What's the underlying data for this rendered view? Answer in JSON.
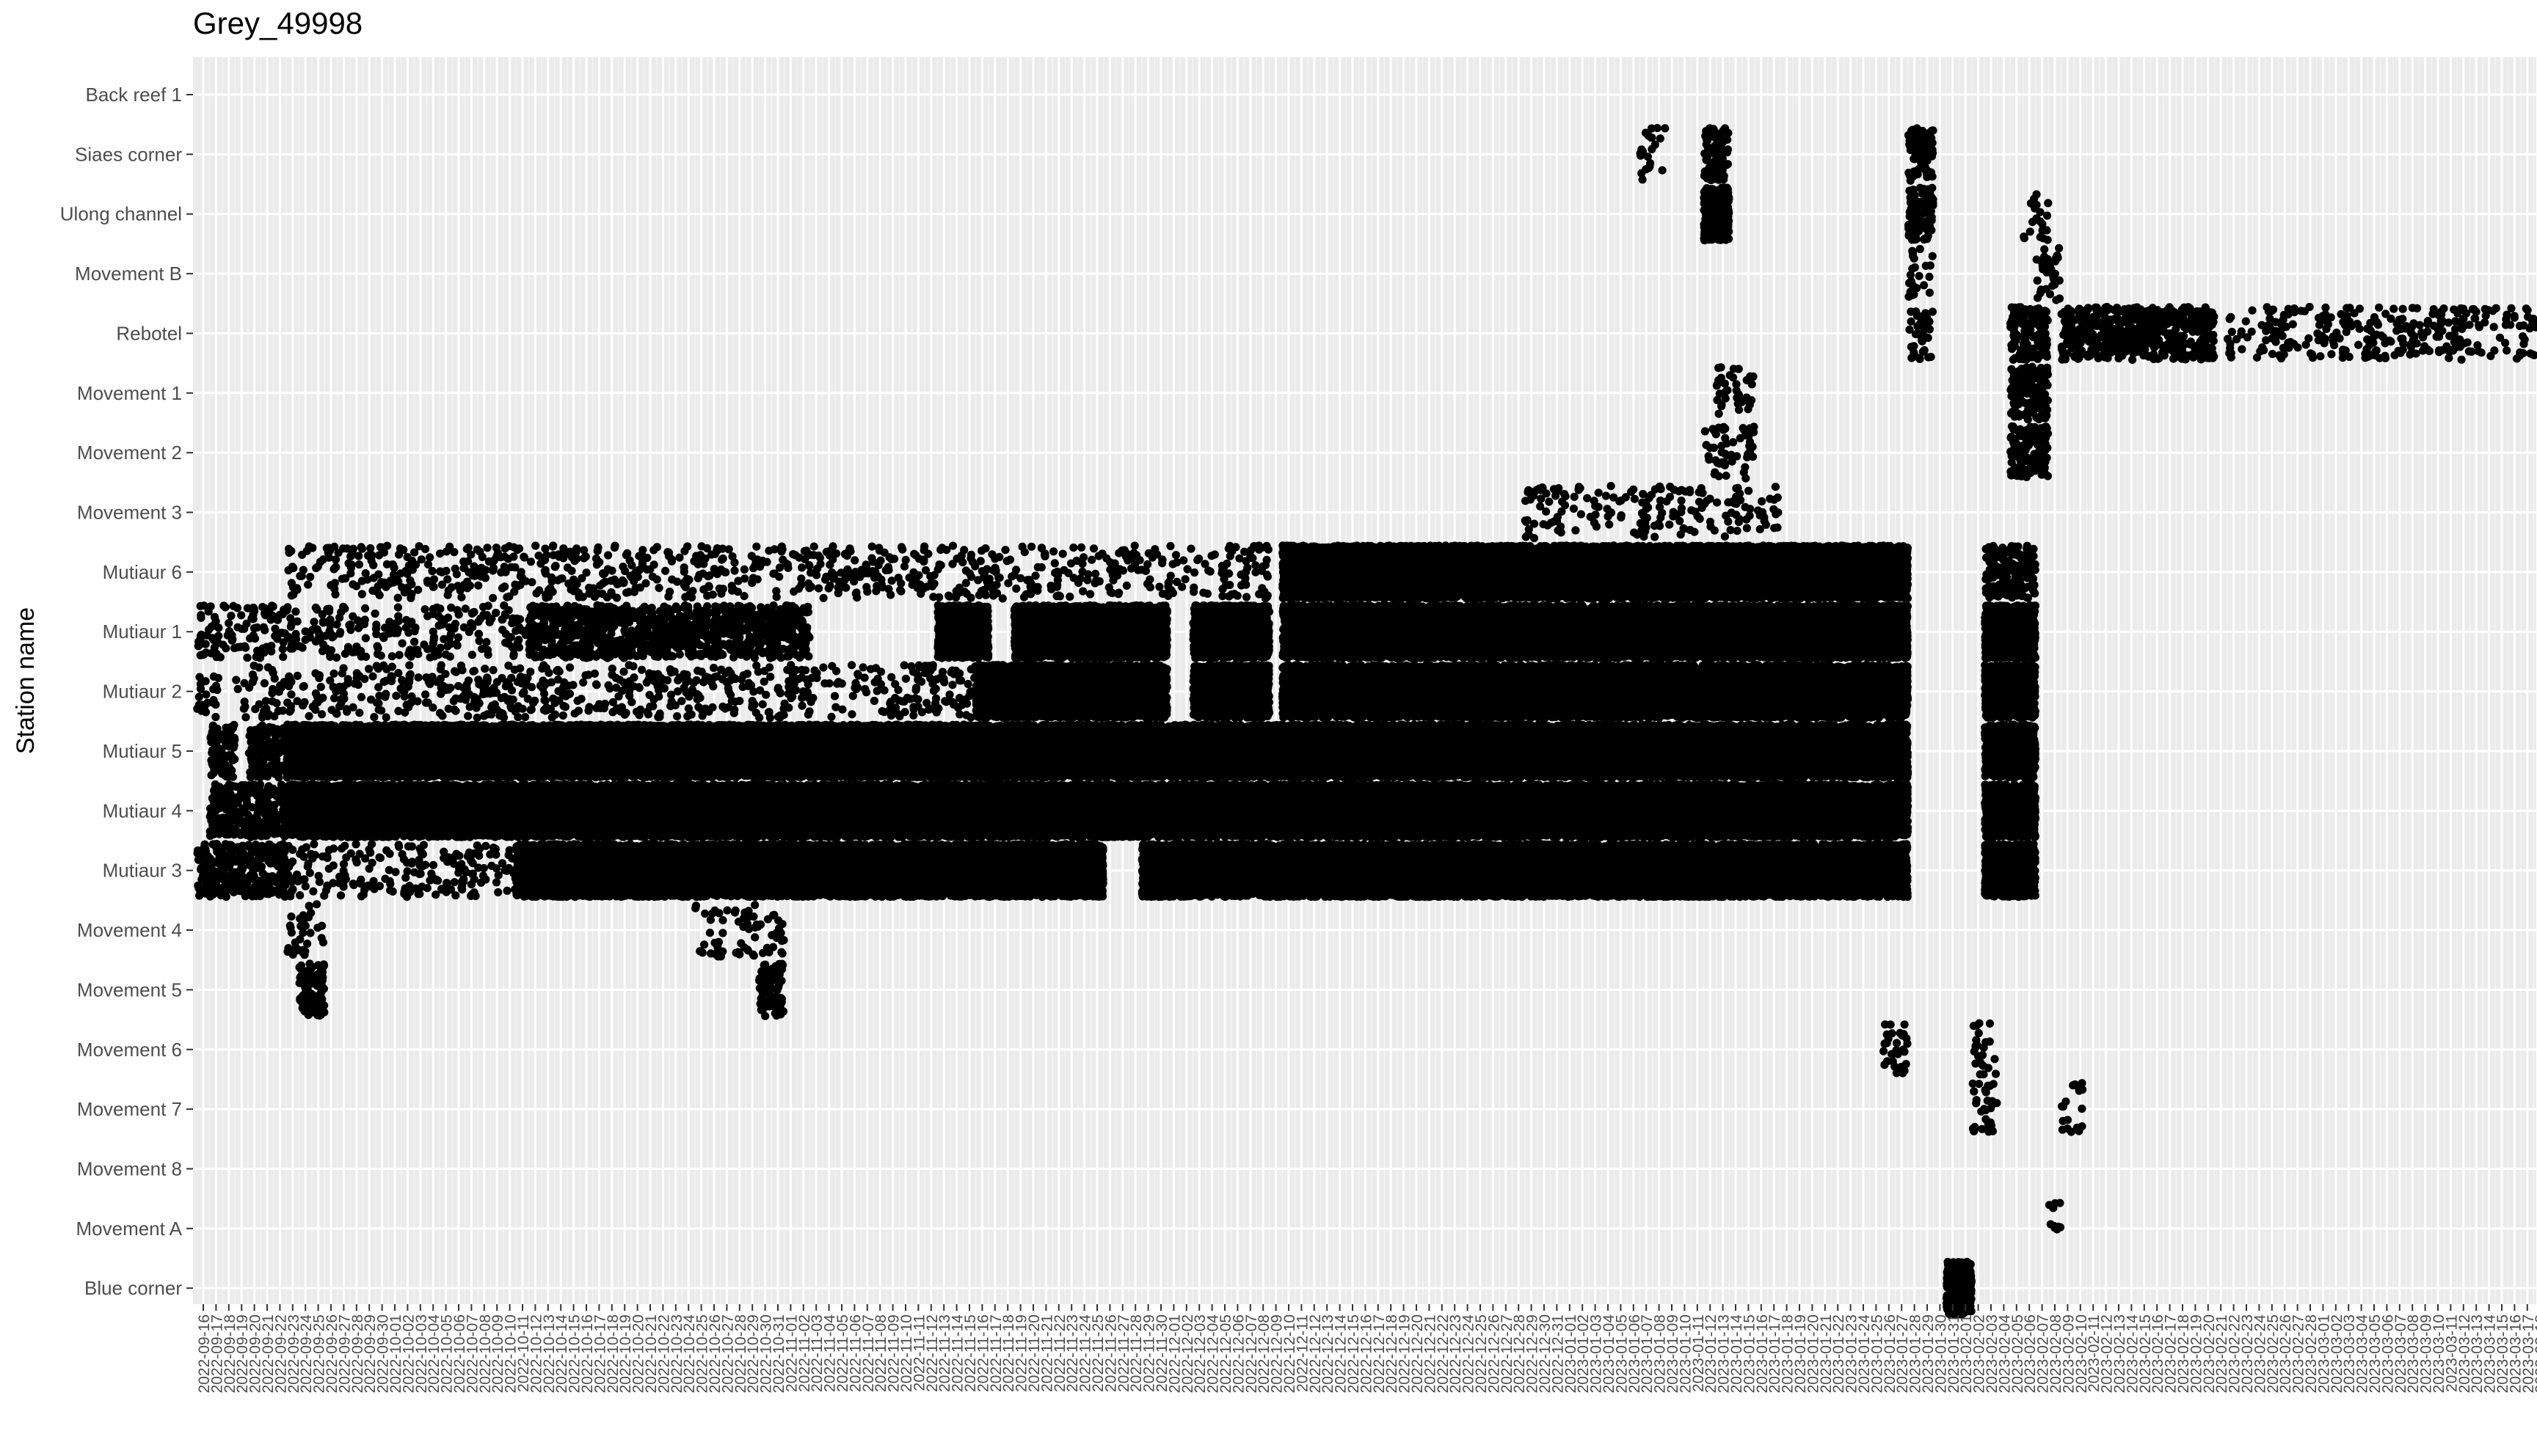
{
  "chart_data": {
    "type": "scatter",
    "title": "Grey_49998",
    "xlabel": "",
    "ylabel": "Station name",
    "x_start": "2022-09-16",
    "x_end": "2023-03-20",
    "x_tick_step_days": 1,
    "stations": [
      "Back reef 1",
      "Siaes corner",
      "Ulong channel",
      "Movement B",
      "Rebotel",
      "Movement 1",
      "Movement 2",
      "Movement 3",
      "Mutiaur 6",
      "Mutiaur 1",
      "Mutiaur 2",
      "Mutiaur 5",
      "Mutiaur 4",
      "Mutiaur 3",
      "Movement 4",
      "Movement 5",
      "Movement 6",
      "Movement 7",
      "Movement 8",
      "Movement A",
      "Blue corner"
    ],
    "grid": true,
    "legend": "none",
    "colors": {
      "panel": "#ebebeb",
      "grid": "#ffffff",
      "points": "#000000",
      "text": "#4d4d4d"
    },
    "detection_ranges": [
      {
        "station": "Mutiaur 3",
        "from": "2022-09-16",
        "to": "2022-09-22",
        "density": "medium"
      },
      {
        "station": "Mutiaur 3",
        "from": "2022-09-23",
        "to": "2022-10-10",
        "density": "sparse"
      },
      {
        "station": "Mutiaur 3",
        "from": "2022-10-11",
        "to": "2022-10-25",
        "density": "dense"
      },
      {
        "station": "Mutiaur 3",
        "from": "2022-10-26",
        "to": "2022-11-25",
        "density": "dense"
      },
      {
        "station": "Mutiaur 3",
        "from": "2022-11-29",
        "to": "2023-01-09",
        "density": "dense"
      },
      {
        "station": "Mutiaur 3",
        "from": "2023-01-10",
        "to": "2023-01-27",
        "density": "dense"
      },
      {
        "station": "Mutiaur 3",
        "from": "2023-02-03",
        "to": "2023-02-06",
        "density": "dense"
      },
      {
        "station": "Mutiaur 4",
        "from": "2022-09-17",
        "to": "2022-09-22",
        "density": "medium"
      },
      {
        "station": "Mutiaur 4",
        "from": "2022-09-23",
        "to": "2023-01-27",
        "density": "dense"
      },
      {
        "station": "Mutiaur 4",
        "from": "2023-02-03",
        "to": "2023-02-06",
        "density": "dense"
      },
      {
        "station": "Mutiaur 5",
        "from": "2022-09-17",
        "to": "2022-09-18",
        "density": "medium"
      },
      {
        "station": "Mutiaur 5",
        "from": "2022-09-20",
        "to": "2022-09-22",
        "density": "medium"
      },
      {
        "station": "Mutiaur 5",
        "from": "2022-09-23",
        "to": "2022-10-11",
        "density": "dense"
      },
      {
        "station": "Mutiaur 5",
        "from": "2022-10-12",
        "to": "2022-11-24",
        "density": "dense"
      },
      {
        "station": "Mutiaur 5",
        "from": "2022-11-25",
        "to": "2023-01-27",
        "density": "dense"
      },
      {
        "station": "Mutiaur 5",
        "from": "2023-02-03",
        "to": "2023-02-06",
        "density": "dense"
      },
      {
        "station": "Mutiaur 2",
        "from": "2022-09-16",
        "to": "2022-09-17",
        "density": "sparse"
      },
      {
        "station": "Mutiaur 2",
        "from": "2022-09-19",
        "to": "2022-11-15",
        "density": "sparse"
      },
      {
        "station": "Mutiaur 2",
        "from": "2022-11-16",
        "to": "2022-11-30",
        "density": "dense"
      },
      {
        "station": "Mutiaur 2",
        "from": "2022-12-03",
        "to": "2022-12-08",
        "density": "dense"
      },
      {
        "station": "Mutiaur 2",
        "from": "2022-12-10",
        "to": "2023-01-27",
        "density": "dense"
      },
      {
        "station": "Mutiaur 2",
        "from": "2023-02-03",
        "to": "2023-02-06",
        "density": "dense"
      },
      {
        "station": "Mutiaur 1",
        "from": "2022-09-16",
        "to": "2022-10-11",
        "density": "sparse"
      },
      {
        "station": "Mutiaur 1",
        "from": "2022-10-12",
        "to": "2022-11-02",
        "density": "medium"
      },
      {
        "station": "Mutiaur 1",
        "from": "2022-11-13",
        "to": "2022-11-16",
        "density": "dense"
      },
      {
        "station": "Mutiaur 1",
        "from": "2022-11-19",
        "to": "2022-11-30",
        "density": "dense"
      },
      {
        "station": "Mutiaur 1",
        "from": "2022-12-03",
        "to": "2022-12-08",
        "density": "dense"
      },
      {
        "station": "Mutiaur 1",
        "from": "2022-12-10",
        "to": "2023-01-27",
        "density": "dense"
      },
      {
        "station": "Mutiaur 1",
        "from": "2023-02-03",
        "to": "2023-02-06",
        "density": "dense"
      },
      {
        "station": "Mutiaur 6",
        "from": "2022-09-23",
        "to": "2022-12-08",
        "density": "sparse"
      },
      {
        "station": "Mutiaur 6",
        "from": "2022-12-10",
        "to": "2023-01-27",
        "density": "dense"
      },
      {
        "station": "Mutiaur 6",
        "from": "2023-02-03",
        "to": "2023-02-06",
        "density": "medium"
      },
      {
        "station": "Movement 3",
        "from": "2022-12-29",
        "to": "2023-01-17",
        "density": "sparse"
      },
      {
        "station": "Movement 2",
        "from": "2023-01-12",
        "to": "2023-01-15",
        "density": "sparse"
      },
      {
        "station": "Movement 1",
        "from": "2023-01-13",
        "to": "2023-01-15",
        "density": "sparse"
      },
      {
        "station": "Movement 1",
        "from": "2023-02-05",
        "to": "2023-02-07",
        "density": "medium"
      },
      {
        "station": "Movement 2",
        "from": "2023-02-05",
        "to": "2023-02-07",
        "density": "medium"
      },
      {
        "station": "Movement 4",
        "from": "2022-09-23",
        "to": "2022-09-25",
        "density": "sparse"
      },
      {
        "station": "Movement 4",
        "from": "2022-10-25",
        "to": "2022-10-31",
        "density": "sparse"
      },
      {
        "station": "Movement 5",
        "from": "2022-09-24",
        "to": "2022-09-25",
        "density": "medium"
      },
      {
        "station": "Movement 5",
        "from": "2022-10-30",
        "to": "2022-10-31",
        "density": "medium"
      },
      {
        "station": "Movement 6",
        "from": "2023-01-26",
        "to": "2023-01-27",
        "density": "sparse"
      },
      {
        "station": "Movement 6",
        "from": "2023-02-02",
        "to": "2023-02-03",
        "density": "sparse"
      },
      {
        "station": "Movement 7",
        "from": "2023-02-02",
        "to": "2023-02-03",
        "density": "sparse"
      },
      {
        "station": "Movement 7",
        "from": "2023-02-09",
        "to": "2023-02-10",
        "density": "sparse"
      },
      {
        "station": "Siaes corner",
        "from": "2023-01-07",
        "to": "2023-01-08",
        "density": "sparse"
      },
      {
        "station": "Siaes corner",
        "from": "2023-01-12",
        "to": "2023-01-13",
        "density": "medium"
      },
      {
        "station": "Siaes corner",
        "from": "2023-01-28",
        "to": "2023-01-29",
        "density": "medium"
      },
      {
        "station": "Ulong channel",
        "from": "2023-01-12",
        "to": "2023-01-13",
        "density": "dense"
      },
      {
        "station": "Ulong channel",
        "from": "2023-01-28",
        "to": "2023-01-29",
        "density": "medium"
      },
      {
        "station": "Ulong channel",
        "from": "2023-02-06",
        "to": "2023-02-07",
        "density": "sparse"
      },
      {
        "station": "Movement B",
        "from": "2023-01-28",
        "to": "2023-01-29",
        "density": "sparse"
      },
      {
        "station": "Movement B",
        "from": "2023-02-07",
        "to": "2023-02-08",
        "density": "sparse"
      },
      {
        "station": "Rebotel",
        "from": "2023-01-28",
        "to": "2023-01-29",
        "density": "sparse"
      },
      {
        "station": "Rebotel",
        "from": "2023-02-05",
        "to": "2023-02-07",
        "density": "medium"
      },
      {
        "station": "Rebotel",
        "from": "2023-02-09",
        "to": "2023-02-20",
        "density": "medium"
      },
      {
        "station": "Rebotel",
        "from": "2023-02-22",
        "to": "2023-03-20",
        "density": "sparse"
      },
      {
        "station": "Movement A",
        "from": "2023-02-08",
        "to": "2023-02-08",
        "density": "sparse"
      },
      {
        "station": "Blue corner",
        "from": "2023-01-31",
        "to": "2023-02-01",
        "density": "dense"
      }
    ]
  }
}
